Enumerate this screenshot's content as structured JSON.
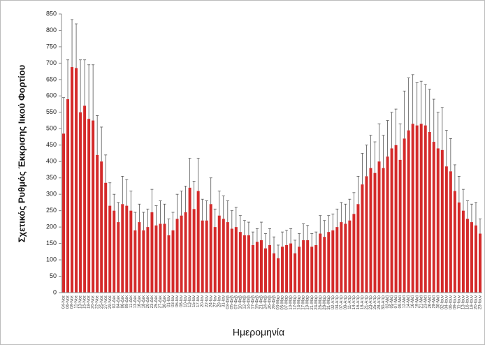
{
  "chart_data": {
    "type": "bar",
    "ylabel": "Σχετικός Ρυθμός Έκκρισης Ιικού Φορτίου",
    "xlabel": "Ημερομηνία",
    "color": "#d42a2a",
    "error_color": "#555555",
    "ylim": [
      0,
      850
    ],
    "yticks": [
      0,
      50,
      100,
      150,
      200,
      250,
      300,
      350,
      400,
      450,
      500,
      550,
      600,
      650,
      700,
      750,
      800,
      850
    ],
    "categories": [
      "04-Νοε",
      "06-Νοε",
      "08-Νοε",
      "11-Νοε",
      "13-Νοε",
      "15-Νοε",
      "18-Νοε",
      "20-Νοε",
      "22-Νοε",
      "25-Νοε",
      "27-Νοε",
      "29-Νοε",
      "02-Δεκ",
      "04-Δεκ",
      "06-Δεκ",
      "09-Δεκ",
      "11-Δεκ",
      "13-Δεκ",
      "16-Δεκ",
      "18-Δεκ",
      "20-Δεκ",
      "23-Δεκ",
      "25-Δεκ",
      "27-Δεκ",
      "30-Δεκ",
      "01-Ιαν",
      "03-Ιαν",
      "06-Ιαν",
      "08-Ιαν",
      "10-Ιαν",
      "13-Ιαν",
      "15-Ιαν",
      "17-Ιαν",
      "20-Ιαν",
      "22-Ιαν",
      "24-Ιαν",
      "27-Ιαν",
      "29-Ιαν",
      "31-Ιαν",
      "03-Φεβ",
      "05-Φεβ",
      "07-Φεβ",
      "10-Φεβ",
      "12-Φεβ",
      "14-Φεβ",
      "17-Φεβ",
      "19-Φεβ",
      "21-Φεβ",
      "24-Φεβ",
      "26-Φεβ",
      "28-Φεβ",
      "03-Μαρ",
      "05-Μαρ",
      "07-Μαρ",
      "10-Μαρ",
      "12-Μαρ",
      "14-Μαρ",
      "17-Μαρ",
      "19-Μαρ",
      "21-Μαρ",
      "24-Μαρ",
      "26-Μαρ",
      "28-Μαρ",
      "31-Μαρ",
      "02-Απρ",
      "04-Απρ",
      "07-Απρ",
      "09-Απρ",
      "11-Απρ",
      "14-Απρ",
      "16-Απρ",
      "18-Απρ",
      "21-Απρ",
      "23-Απρ",
      "25-Απρ",
      "28-Απρ",
      "30-Απρ",
      "02-Μαϊ",
      "05-Μαϊ",
      "07-Μαϊ",
      "09-Μαϊ",
      "12-Μαϊ",
      "14-Μαϊ",
      "16-Μαϊ",
      "19-Μαϊ",
      "21-Μαϊ",
      "23-Μαϊ",
      "26-Μαϊ",
      "28-Μαϊ",
      "30-Μαϊ",
      "02-Ιουν",
      "04-Ιουν",
      "06-Ιουν",
      "09-Ιουν",
      "11-Ιουν",
      "13-Ιουν",
      "16-Ιουν",
      "18-Ιουν",
      "20-Ιουν",
      "23-Ιουν"
    ],
    "values": [
      485,
      590,
      688,
      685,
      550,
      570,
      530,
      525,
      420,
      400,
      335,
      265,
      250,
      215,
      270,
      265,
      250,
      190,
      215,
      190,
      200,
      245,
      205,
      210,
      210,
      175,
      190,
      225,
      235,
      245,
      320,
      255,
      310,
      220,
      220,
      270,
      200,
      235,
      225,
      215,
      195,
      200,
      185,
      175,
      175,
      145,
      155,
      160,
      135,
      145,
      120,
      105,
      140,
      145,
      150,
      120,
      140,
      160,
      160,
      140,
      145,
      180,
      170,
      185,
      190,
      200,
      215,
      210,
      220,
      240,
      270,
      330,
      355,
      380,
      365,
      400,
      380,
      415,
      440,
      450,
      405,
      470,
      495,
      515,
      510,
      515,
      510,
      490,
      460,
      440,
      435,
      385,
      370,
      310,
      275,
      250,
      225,
      215,
      205,
      180
    ],
    "errors": [
      110,
      120,
      145,
      135,
      160,
      140,
      165,
      170,
      120,
      105,
      85,
      70,
      50,
      60,
      85,
      80,
      60,
      55,
      55,
      55,
      55,
      70,
      60,
      70,
      60,
      50,
      55,
      75,
      75,
      80,
      90,
      85,
      100,
      65,
      60,
      80,
      55,
      75,
      70,
      65,
      55,
      60,
      50,
      45,
      40,
      40,
      40,
      55,
      45,
      50,
      50,
      40,
      45,
      45,
      45,
      40,
      40,
      50,
      45,
      40,
      40,
      55,
      50,
      50,
      50,
      55,
      60,
      60,
      65,
      65,
      85,
      95,
      95,
      100,
      95,
      115,
      100,
      110,
      110,
      110,
      110,
      145,
      160,
      150,
      130,
      130,
      125,
      130,
      130,
      110,
      130,
      110,
      100,
      80,
      80,
      65,
      55,
      55,
      70,
      45
    ]
  }
}
